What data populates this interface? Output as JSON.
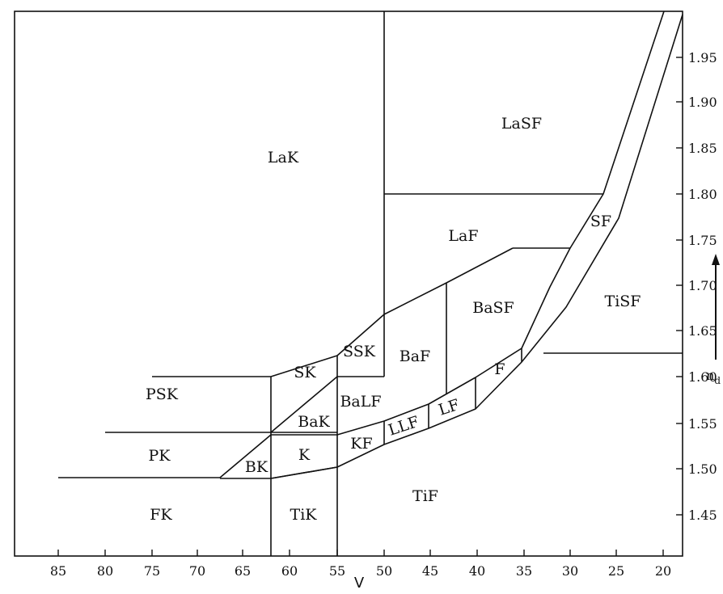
{
  "x_axis": {
    "label": "V",
    "ticks": [
      "85",
      "80",
      "75",
      "70",
      "65",
      "60",
      "55",
      "50",
      "45",
      "40",
      "35",
      "30",
      "25",
      "20"
    ]
  },
  "y_axis": {
    "label": "n",
    "label_subscript": "d",
    "ticks": [
      "1.95",
      "1.90",
      "1.85",
      "1.80",
      "1.75",
      "1.70",
      "1.65",
      "1.60",
      "1.55",
      "1.50",
      "1.45"
    ]
  },
  "regions": {
    "lak": "LaK",
    "lasf": "LaSF",
    "laf": "LaF",
    "basf": "BaSF",
    "sf": "SF",
    "tisf": "TiSF",
    "psk": "PSK",
    "sk": "SK",
    "ssk": "SSK",
    "baf": "BaF",
    "balf": "BaLF",
    "bak": "BaK",
    "f": "F",
    "lf": "LF",
    "llf": "LLF",
    "kf": "KF",
    "k": "K",
    "bk": "BK",
    "pk": "PK",
    "fk": "FK",
    "tik": "TiK",
    "tif": "TiF"
  }
}
